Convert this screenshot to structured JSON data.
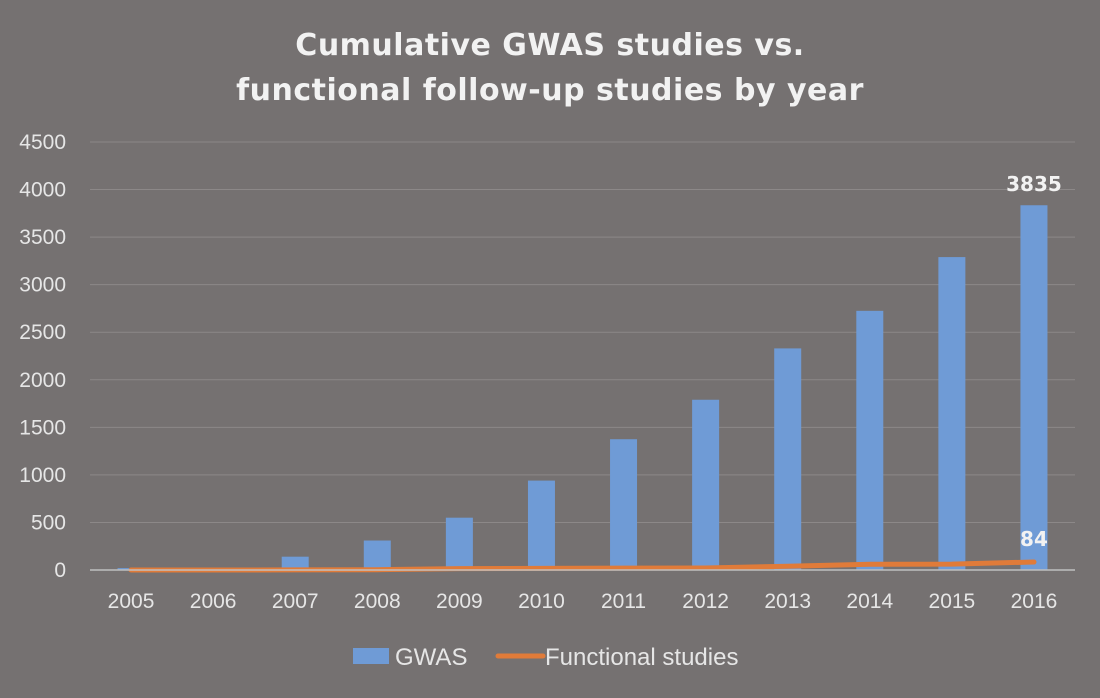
{
  "chart_data": {
    "type": "bar",
    "title": [
      "Cumulative GWAS studies vs.",
      "functional follow-up studies by year"
    ],
    "categories": [
      "2005",
      "2006",
      "2007",
      "2008",
      "2009",
      "2010",
      "2011",
      "2012",
      "2013",
      "2014",
      "2015",
      "2016"
    ],
    "series": [
      {
        "name": "GWAS",
        "type": "bar",
        "color": "#6f9bd6",
        "values": [
          20,
          5,
          140,
          310,
          550,
          940,
          1375,
          1790,
          2330,
          2725,
          3290,
          3835
        ]
      },
      {
        "name": "Functional studies",
        "type": "line",
        "color": "#e07b39",
        "values": [
          0,
          0,
          1,
          3,
          15,
          17,
          20,
          21,
          40,
          60,
          62,
          84
        ]
      }
    ],
    "data_labels": [
      {
        "series": 0,
        "index": 11,
        "text": "3835"
      },
      {
        "series": 1,
        "index": 11,
        "text": "84"
      }
    ],
    "yticks": [
      "0",
      "500",
      "1000",
      "1500",
      "2000",
      "2500",
      "3000",
      "3500",
      "4000",
      "4500"
    ],
    "ylim": [
      0,
      4500
    ],
    "grid": true,
    "legend": "bottom"
  }
}
